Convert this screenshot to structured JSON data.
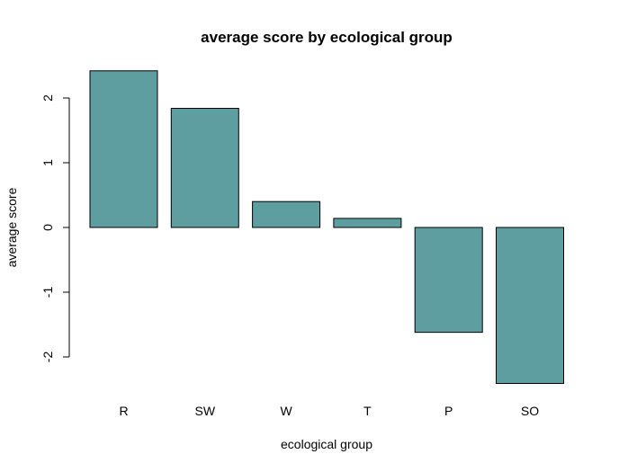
{
  "chart_data": {
    "type": "bar",
    "title": "average score by ecological group",
    "xlabel": "ecological group",
    "ylabel": "average score",
    "categories": [
      "R",
      "SW",
      "W",
      "T",
      "P",
      "SO"
    ],
    "values": [
      2.42,
      1.84,
      0.4,
      0.14,
      -1.62,
      -2.41
    ],
    "ylim": [
      -2.5,
      2.5
    ],
    "yticks": [
      -2,
      -1,
      0,
      1,
      2
    ],
    "bar_color": "#5f9ea0",
    "grid": false
  }
}
